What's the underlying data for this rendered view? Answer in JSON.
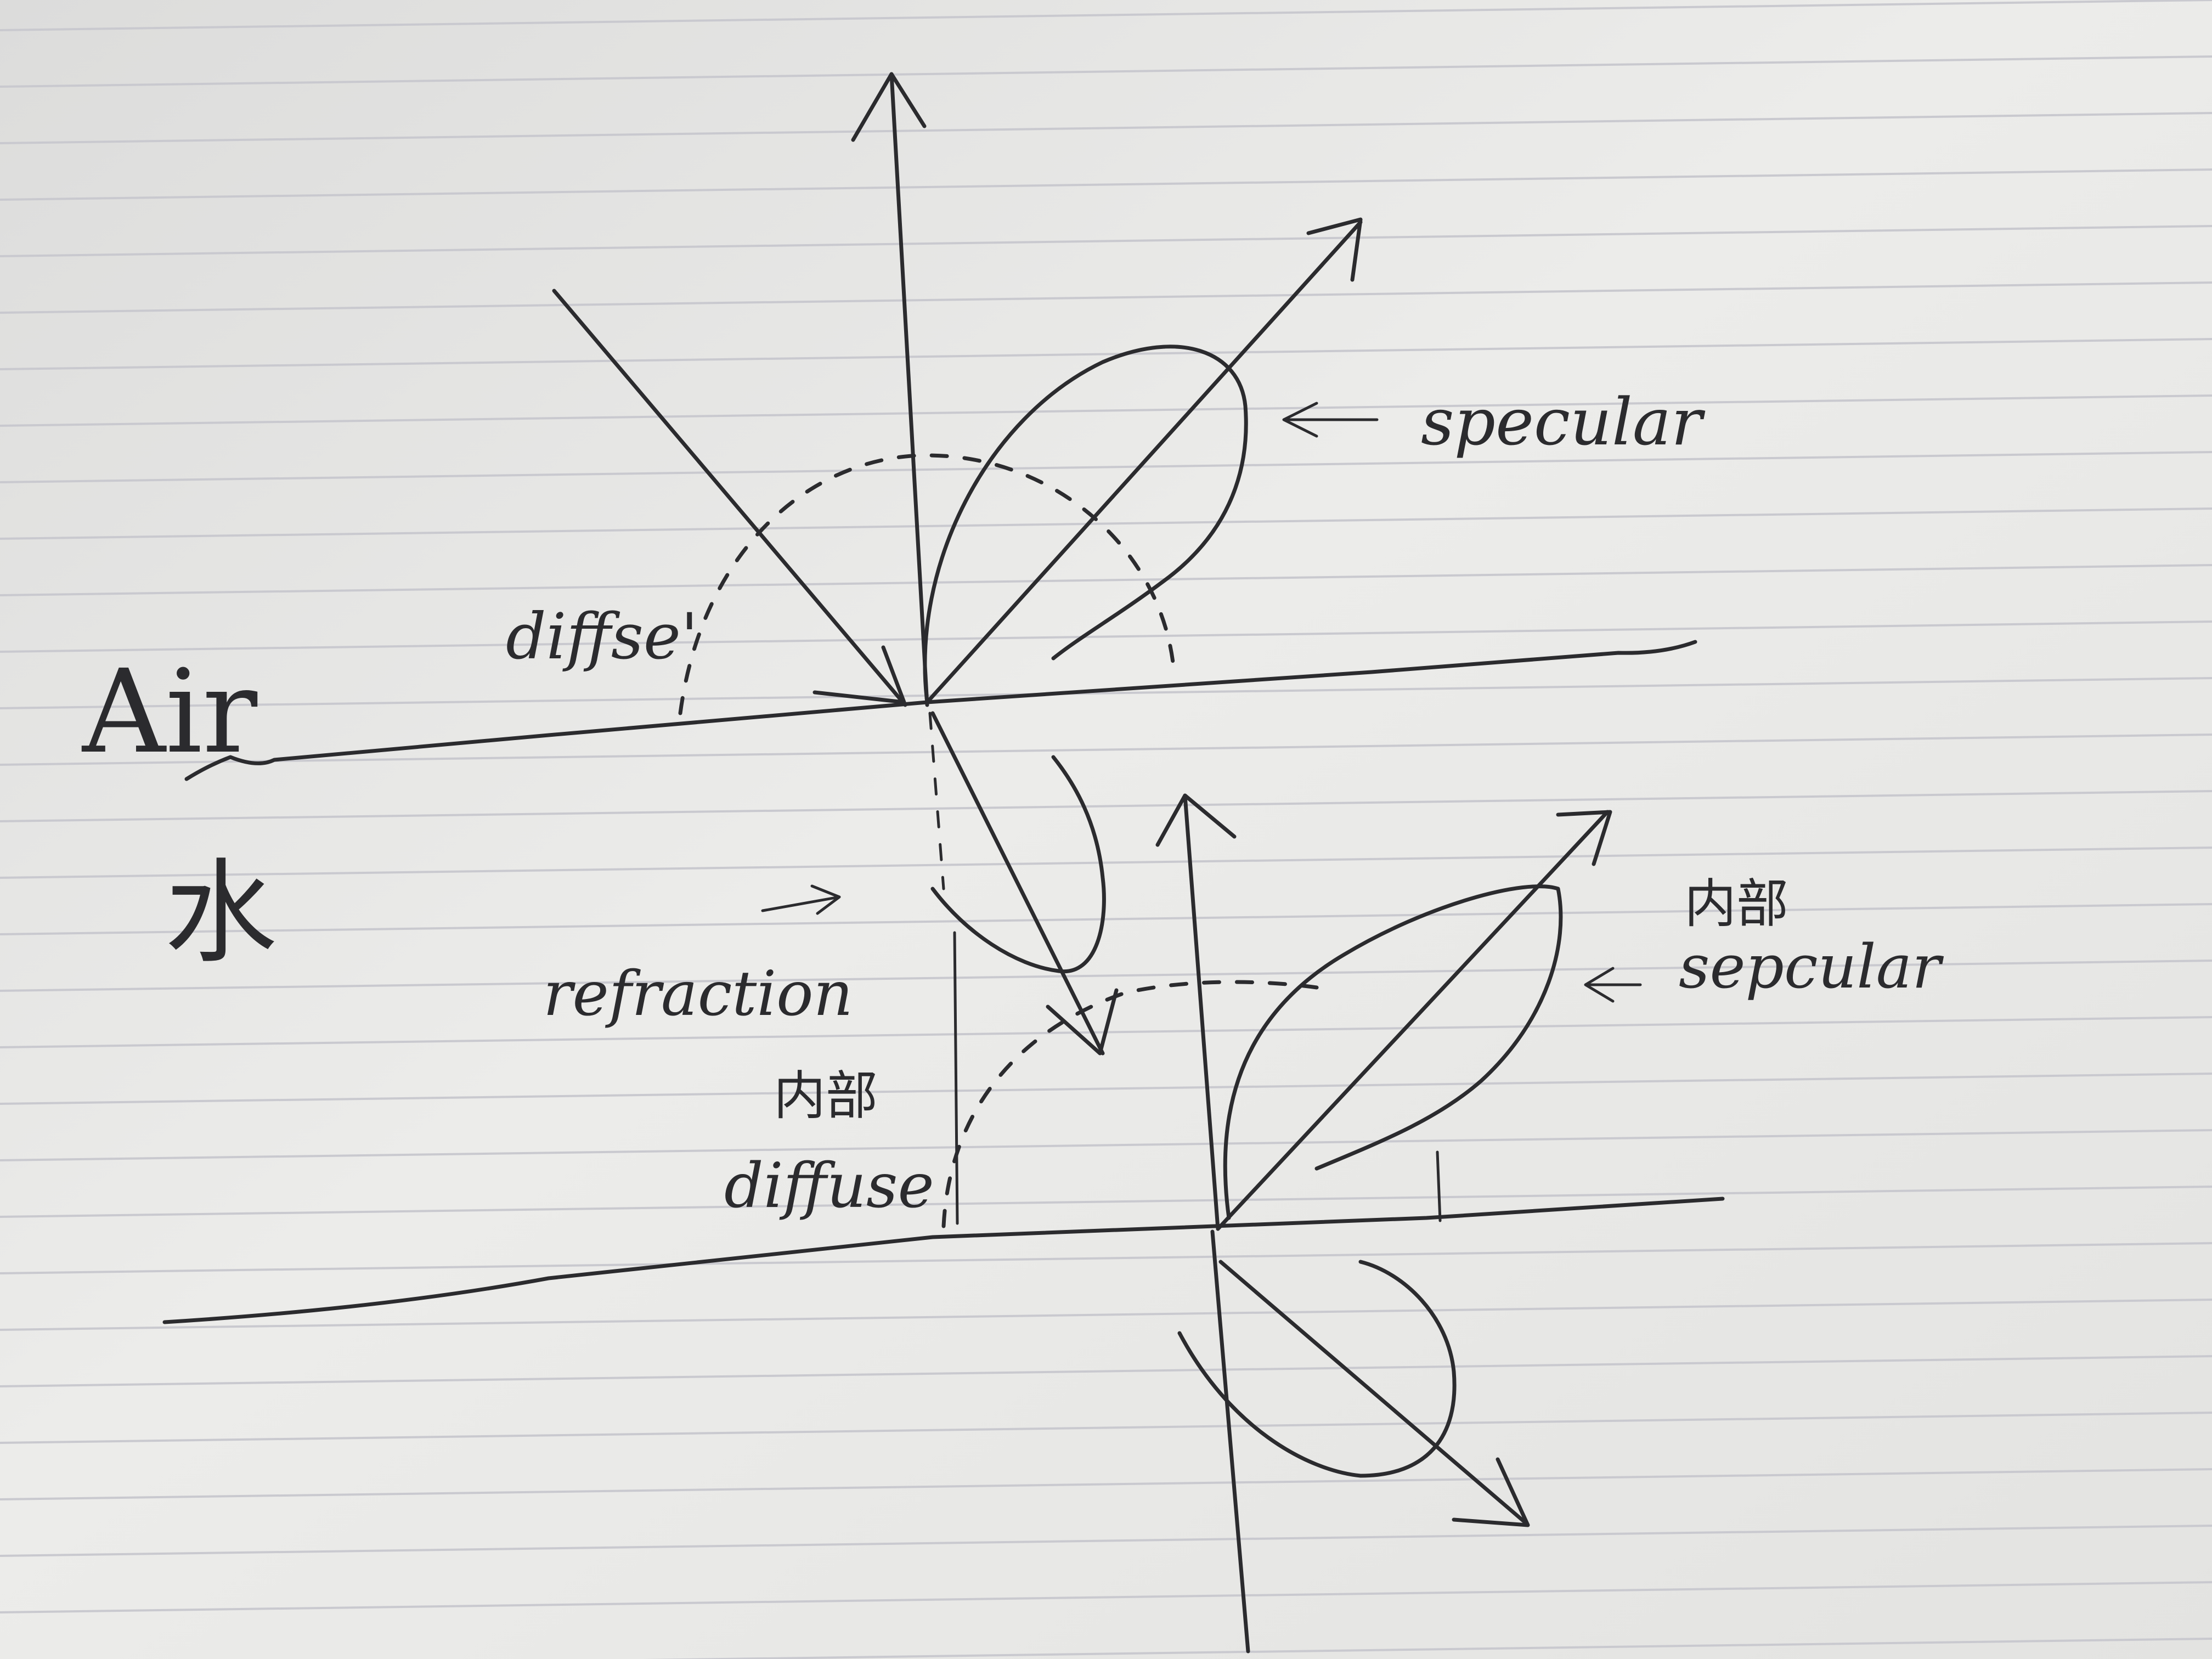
{
  "diagram": {
    "medium_top": "Air",
    "medium_bottom": "水",
    "labels": {
      "diffuse_upper": "diffse'",
      "specular_upper": "specular",
      "refraction": "refraction",
      "internal_diffuse_cn": "内部",
      "internal_diffuse": "diffuse",
      "internal_specular_cn": "内部",
      "internal_specular": "sepcular"
    },
    "colors": {
      "paper": "#ecebe8",
      "rule_line": "#c9c9cf",
      "ink": "#2b2b2e"
    }
  }
}
